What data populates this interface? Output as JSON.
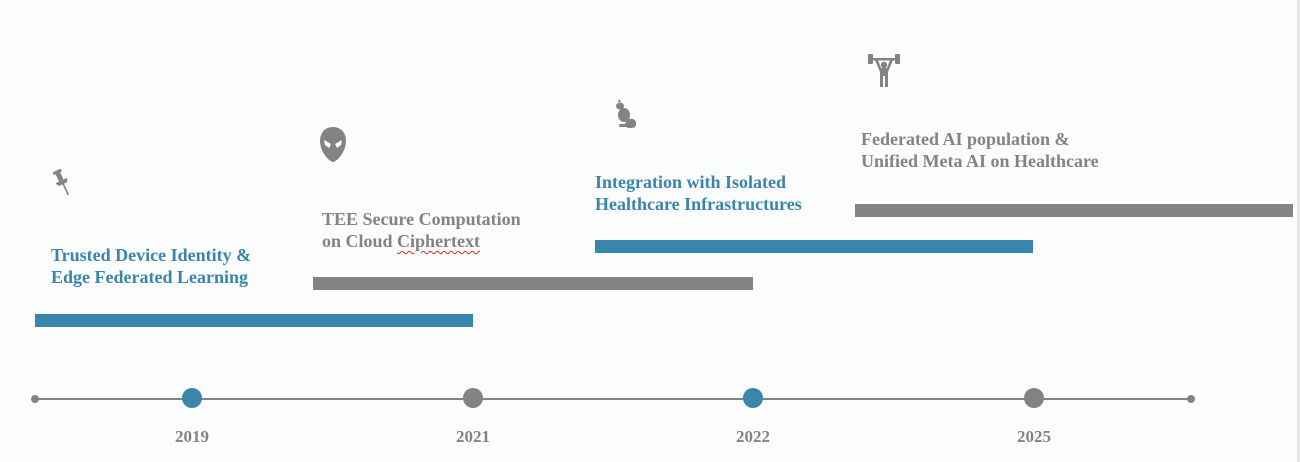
{
  "phases": [
    {
      "line1": "Trusted Device Identity &",
      "line2": "Edge Federated Learning",
      "color": "#3a85aa",
      "icon": "pushpin-icon"
    },
    {
      "line1": "TEE Secure Computation",
      "line2_prefix": "on Cloud ",
      "line2_flagged": "Ciphertext",
      "color": "#838383",
      "icon": "alien-head-icon"
    },
    {
      "line1": "Integration with Isolated",
      "line2": "Healthcare Infrastructures",
      "color": "#3a85aa",
      "icon": "squirrel-icon"
    },
    {
      "line1": "Federated AI population &",
      "line2": "Unified Meta AI on Healthcare",
      "color": "#838383",
      "icon": "weightlifter-icon"
    }
  ],
  "timeline": {
    "years": [
      "2019",
      "2021",
      "2022",
      "2025"
    ],
    "marker_colors": [
      "#3a85aa",
      "#838383",
      "#3a85aa",
      "#838383"
    ]
  },
  "colors": {
    "blue": "#3a85aa",
    "gray": "#838383",
    "background": "#fbfcfc",
    "spellcheck": "#d62d2d"
  }
}
